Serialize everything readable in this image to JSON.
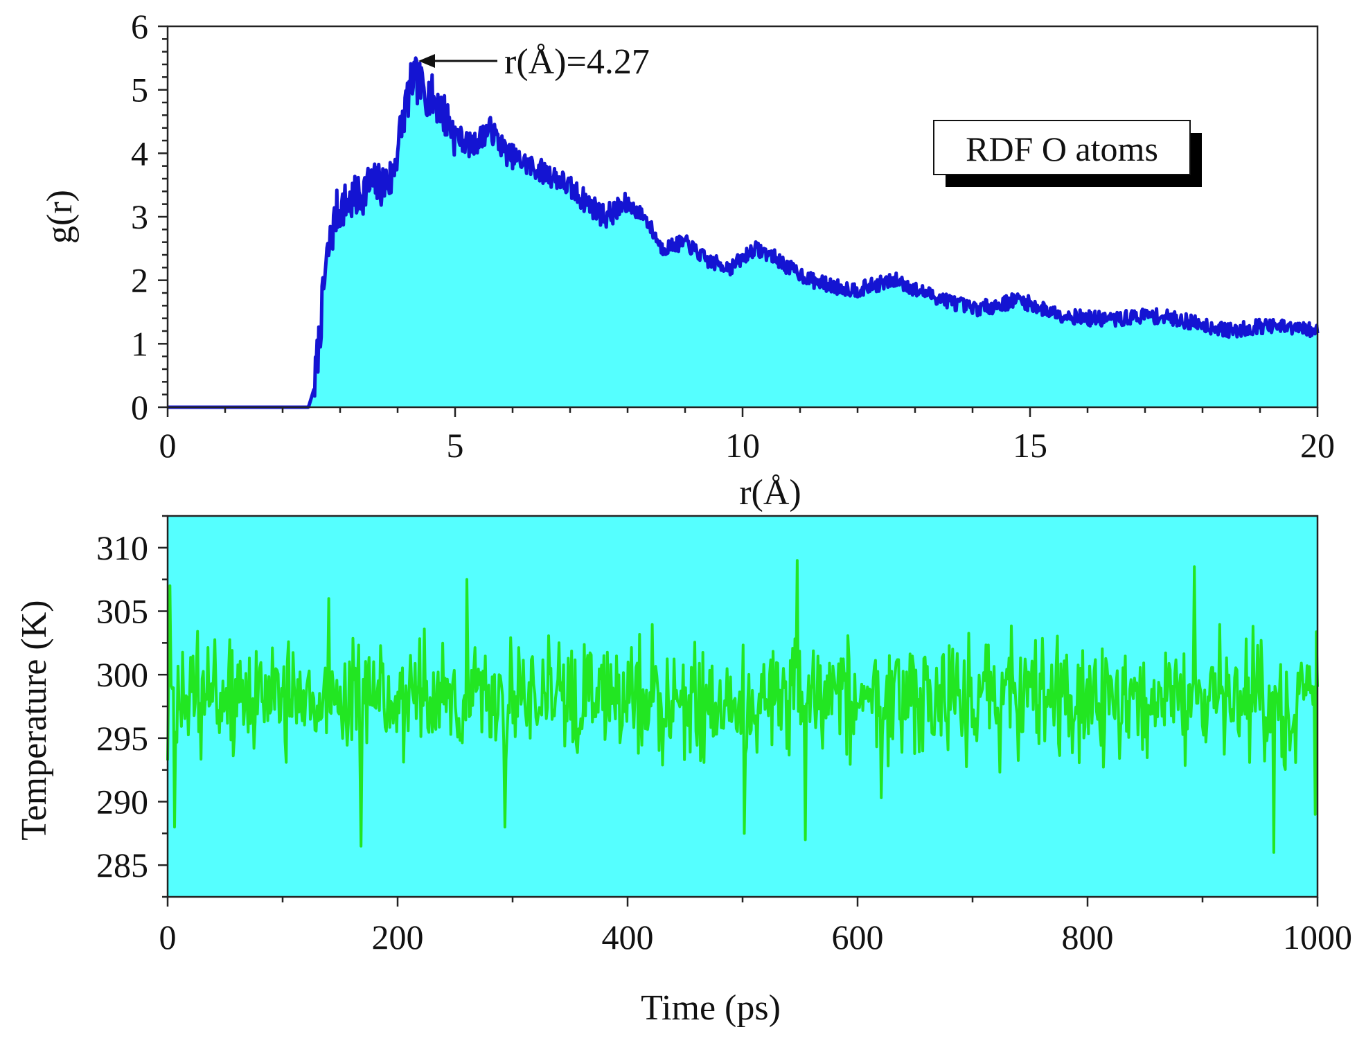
{
  "chart_data": [
    {
      "type": "area",
      "title": "",
      "xlabel": "r(Å)",
      "ylabel": "g(r)",
      "xlim": [
        0,
        20
      ],
      "ylim": [
        0,
        6
      ],
      "xticks": [
        "0",
        "5",
        "10",
        "15",
        "20"
      ],
      "yticks": [
        "0",
        "1",
        "2",
        "3",
        "4",
        "5",
        "6"
      ],
      "legend": "RDF O atoms",
      "legend_position": "top-right",
      "annotation": {
        "text": "r(Å)=4.27",
        "x": 4.4,
        "y": 5.42
      },
      "colors": {
        "line": "#1414d2",
        "fill": "#55ffff"
      },
      "series": [
        {
          "name": "RDF O atoms",
          "r": [
            0,
            2.45,
            2.55,
            2.65,
            2.75,
            2.85,
            2.95,
            3.1,
            3.3,
            3.5,
            3.7,
            3.9,
            4.1,
            4.27,
            4.45,
            4.7,
            5.0,
            5.3,
            5.6,
            5.9,
            6.3,
            6.8,
            7.2,
            7.6,
            8.0,
            8.3,
            8.6,
            9.0,
            9.4,
            9.8,
            10.2,
            10.5,
            10.8,
            11.2,
            11.6,
            12.0,
            12.4,
            12.7,
            13.0,
            13.5,
            14.0,
            14.4,
            14.8,
            15.2,
            15.6,
            16.0,
            16.5,
            17.0,
            17.5,
            18.0,
            18.5,
            19.0,
            19.5,
            20.0
          ],
          "g": [
            0,
            0,
            0.3,
            1.2,
            2.2,
            2.7,
            3.1,
            3.2,
            3.3,
            3.5,
            3.5,
            3.6,
            4.6,
            5.2,
            5.0,
            4.8,
            4.3,
            4.1,
            4.4,
            4.0,
            3.8,
            3.6,
            3.3,
            3.0,
            3.2,
            3.0,
            2.5,
            2.6,
            2.3,
            2.2,
            2.5,
            2.4,
            2.2,
            2.0,
            1.9,
            1.85,
            1.95,
            2.0,
            1.85,
            1.7,
            1.55,
            1.6,
            1.7,
            1.55,
            1.45,
            1.4,
            1.38,
            1.45,
            1.4,
            1.3,
            1.2,
            1.28,
            1.25,
            1.2
          ],
          "noise_amplitude": 0.12
        }
      ]
    },
    {
      "type": "line",
      "title": "",
      "xlabel": "Time (ps)",
      "ylabel": "Temperature (K)",
      "xlim": [
        0,
        1000
      ],
      "ylim": [
        282.5,
        312.5
      ],
      "xticks": [
        "0",
        "200",
        "400",
        "600",
        "800",
        "1000"
      ],
      "yticks": [
        "285",
        "290",
        "295",
        "300",
        "305",
        "310"
      ],
      "colors": {
        "line": "#22e622",
        "background": "#55ffff"
      },
      "series": [
        {
          "name": "Temperature",
          "mean": 298,
          "std": 3.2,
          "n_points": 1000,
          "spikes": [
            {
              "t": 2,
              "T": 307
            },
            {
              "t": 6,
              "T": 288
            },
            {
              "t": 140,
              "T": 306
            },
            {
              "t": 168,
              "T": 286.5
            },
            {
              "t": 260,
              "T": 307.5
            },
            {
              "t": 293,
              "T": 288
            },
            {
              "t": 502,
              "T": 287.5
            },
            {
              "t": 548,
              "T": 309
            },
            {
              "t": 555,
              "T": 287
            },
            {
              "t": 893,
              "T": 308.5
            },
            {
              "t": 962,
              "T": 286
            },
            {
              "t": 998,
              "T": 289
            }
          ]
        }
      ]
    }
  ]
}
